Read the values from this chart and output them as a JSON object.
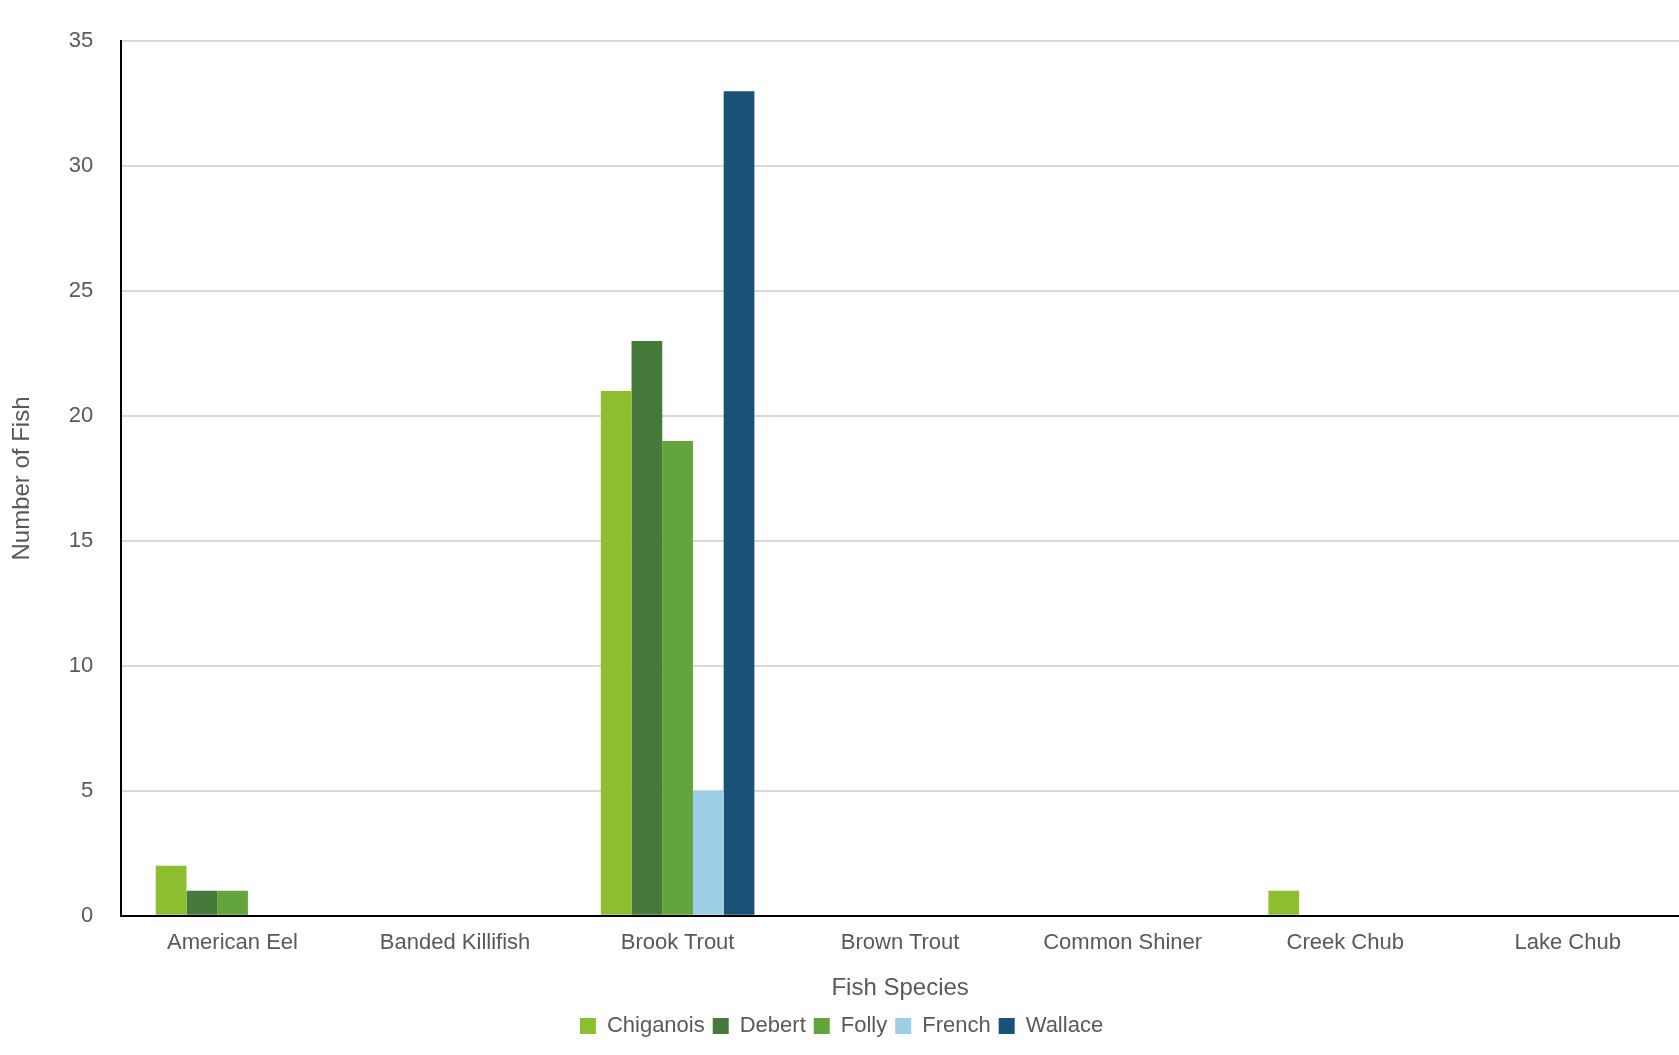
{
  "chart_data": {
    "type": "bar",
    "xlabel": "Fish Species",
    "ylabel": "Number of Fish",
    "categories": [
      "American Eel",
      "Banded Killifish",
      "Brook Trout",
      "Brown Trout",
      "Common Shiner",
      "Creek Chub",
      "Lake Chub"
    ],
    "series": [
      {
        "name": "Chiganois",
        "color": "#8dbe2f",
        "values": [
          2,
          0,
          21,
          0,
          0,
          1,
          0
        ]
      },
      {
        "name": "Debert",
        "color": "#467a3a",
        "values": [
          1,
          0,
          23,
          0,
          0,
          0,
          0
        ]
      },
      {
        "name": "Folly",
        "color": "#63a43c",
        "values": [
          1,
          0,
          19,
          0,
          0,
          0,
          0
        ]
      },
      {
        "name": "French",
        "color": "#9ecde6",
        "values": [
          0,
          0,
          5,
          0,
          0,
          0,
          0
        ]
      },
      {
        "name": "Wallace",
        "color": "#1a5177",
        "values": [
          0,
          0,
          33,
          0,
          0,
          0,
          0
        ]
      }
    ],
    "ylim": [
      0,
      35
    ],
    "yticks": [
      0,
      5,
      10,
      15,
      20,
      25,
      30,
      35
    ],
    "grid": "y",
    "legend": "bottom"
  }
}
